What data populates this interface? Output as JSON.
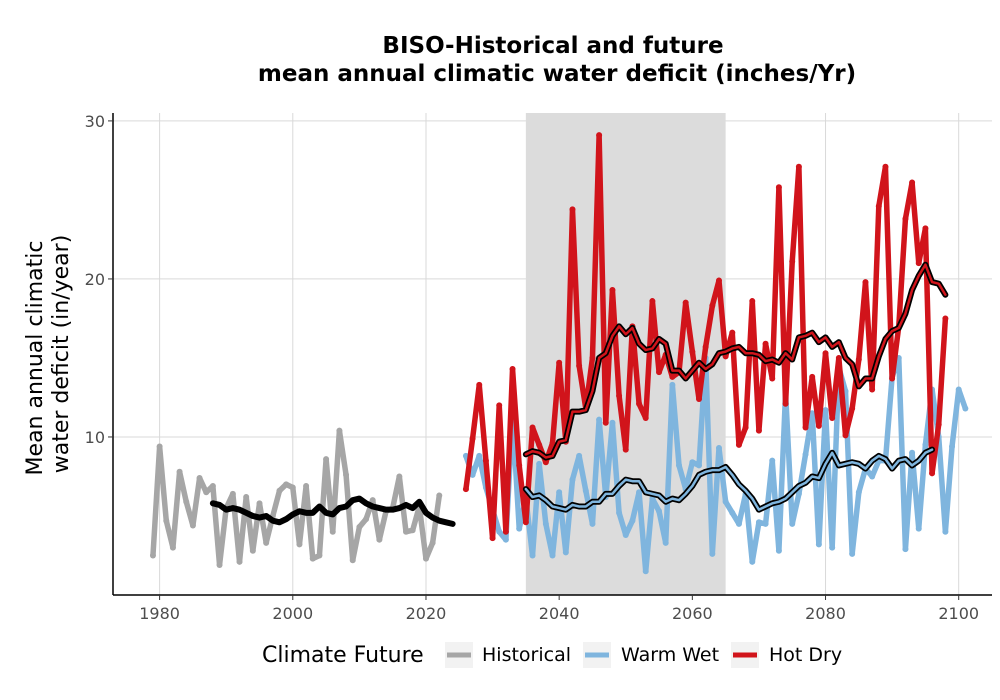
{
  "chart_data": {
    "type": "line",
    "title": "BISO-Historical and future",
    "subtitle": "mean annual climatic water deficit (inches/Yr)",
    "xlabel": "",
    "ylabel_line1": "Mean annual climatic",
    "ylabel_line2": "water deficit (in/year)",
    "xlim": [
      1973,
      2105
    ],
    "ylim": [
      0,
      30.5
    ],
    "x_ticks": [
      1980,
      2000,
      2020,
      2040,
      2060,
      2080,
      2100
    ],
    "y_ticks": [
      10,
      20,
      30
    ],
    "grid": true,
    "shaded_period": [
      2035,
      2065
    ],
    "legend_title": "Climate Future",
    "legend_position": "bottom",
    "colors": {
      "Historical": "#a6a6a6",
      "Warm Wet": "#7fb5de",
      "Hot Dry": "#d1141b",
      "smooth": "#000000",
      "band": "#dcdcdc"
    },
    "series": [
      {
        "name": "Historical",
        "x_start": 1979,
        "values": [
          2.5,
          9.4,
          4.7,
          3.0,
          7.8,
          5.9,
          4.4,
          7.4,
          6.5,
          6.9,
          1.9,
          5.5,
          6.4,
          2.1,
          6.2,
          2.8,
          5.8,
          3.3,
          5.0,
          6.6,
          7.0,
          6.8,
          3.2,
          6.9,
          2.3,
          2.5,
          8.6,
          4.0,
          10.4,
          7.6,
          2.2,
          4.3,
          4.8,
          6.0,
          3.5,
          5.3,
          5.5,
          7.5,
          4.0,
          4.1,
          5.6,
          2.3,
          3.3,
          6.3
        ],
        "smooth_x_start": 1988,
        "smooth": [
          5.8,
          5.7,
          5.4,
          5.5,
          5.4,
          5.2,
          5.0,
          4.9,
          5.0,
          4.7,
          4.6,
          4.8,
          5.1,
          5.3,
          5.2,
          5.2,
          5.6,
          5.2,
          5.1,
          5.5,
          5.6,
          6.0,
          6.1,
          5.8,
          5.6,
          5.5,
          5.4,
          5.4,
          5.5,
          5.7,
          5.5,
          5.9,
          5.2,
          4.9,
          4.7,
          4.6,
          4.5
        ]
      },
      {
        "name": "Warm Wet",
        "x_start": 2026,
        "values": [
          8.8,
          7.6,
          8.8,
          6.8,
          5.4,
          4.0,
          3.5,
          11.4,
          4.2,
          6.1,
          2.5,
          8.3,
          4.5,
          2.5,
          6.5,
          2.7,
          7.3,
          8.8,
          6.6,
          4.5,
          11.1,
          6.2,
          10.9,
          5.2,
          3.8,
          4.7,
          6.5,
          1.5,
          6.1,
          5.3,
          3.3,
          13.3,
          8.2,
          6.7,
          8.4,
          8.2,
          15.0,
          2.6,
          9.3,
          5.9,
          5.2,
          4.5,
          6.4,
          2.1,
          4.6,
          4.5,
          8.5,
          2.8,
          12.8,
          4.5,
          6.4,
          8.9,
          11.5,
          3.2,
          11.7,
          3.0,
          14.4,
          12.9,
          2.6,
          6.5,
          8.0,
          7.5,
          8.5,
          8.5,
          13.8,
          15.0,
          2.9,
          9.0,
          4.2,
          9.5,
          13.0,
          10.0,
          4.0,
          9.4,
          13.0,
          11.8
        ],
        "smooth_x_start": 2035,
        "smooth": [
          6.7,
          6.2,
          6.3,
          6.0,
          5.6,
          5.5,
          5.4,
          5.7,
          5.6,
          5.6,
          5.9,
          5.9,
          6.4,
          6.4,
          6.9,
          7.3,
          7.2,
          7.2,
          6.5,
          6.4,
          6.3,
          5.9,
          6.1,
          6.0,
          6.4,
          6.9,
          7.6,
          7.8,
          7.9,
          7.9,
          8.1,
          7.6,
          7.0,
          6.6,
          6.1,
          5.4,
          5.6,
          5.8,
          5.9,
          6.1,
          6.5,
          6.9,
          7.1,
          7.5,
          7.4,
          8.3,
          9.0,
          8.2,
          8.3,
          8.4,
          8.3,
          8.0,
          8.5,
          8.8,
          8.6,
          8.0,
          8.5,
          8.6,
          8.2,
          8.5,
          9.0,
          9.2
        ]
      },
      {
        "name": "Hot Dry",
        "x_start": 2026,
        "values": [
          6.7,
          9.9,
          13.3,
          8.5,
          3.6,
          12.0,
          4.0,
          14.3,
          8.2,
          4.6,
          10.6,
          9.5,
          8.4,
          9.6,
          14.7,
          9.7,
          24.4,
          14.5,
          11.8,
          15.0,
          29.1,
          10.9,
          19.3,
          12.6,
          9.2,
          17.0,
          12.1,
          11.2,
          18.6,
          14.1,
          15.2,
          13.8,
          14.1,
          18.5,
          15.4,
          12.4,
          15.7,
          18.3,
          19.9,
          15.1,
          16.6,
          9.5,
          10.6,
          18.6,
          10.4,
          15.9,
          13.7,
          25.8,
          12.1,
          21.1,
          27.1,
          10.6,
          13.8,
          10.7,
          15.3,
          11.2,
          15.0,
          10.1,
          11.8,
          14.9,
          19.8,
          13.0,
          24.6,
          27.1,
          13.7,
          17.0,
          23.8,
          26.1,
          21.0,
          23.2,
          7.7,
          10.8,
          17.5
        ],
        "smooth_x_start": 2035,
        "smooth": [
          8.9,
          9.1,
          9.0,
          8.7,
          8.8,
          9.7,
          9.8,
          11.6,
          11.6,
          11.7,
          12.9,
          15.0,
          15.3,
          16.4,
          17.0,
          16.5,
          16.9,
          15.9,
          15.5,
          15.6,
          16.2,
          15.9,
          14.2,
          14.2,
          13.7,
          14.2,
          14.7,
          14.3,
          14.6,
          15.3,
          15.4,
          15.6,
          15.7,
          15.3,
          15.3,
          15.2,
          14.8,
          14.9,
          14.7,
          15.3,
          14.9,
          16.3,
          16.4,
          16.6,
          16.0,
          16.3,
          15.7,
          16.0,
          15.0,
          14.6,
          13.2,
          13.7,
          13.7,
          15.1,
          16.2,
          16.7,
          16.9,
          17.8,
          19.3,
          20.2,
          20.9,
          19.8,
          19.7,
          19.0
        ]
      }
    ]
  }
}
